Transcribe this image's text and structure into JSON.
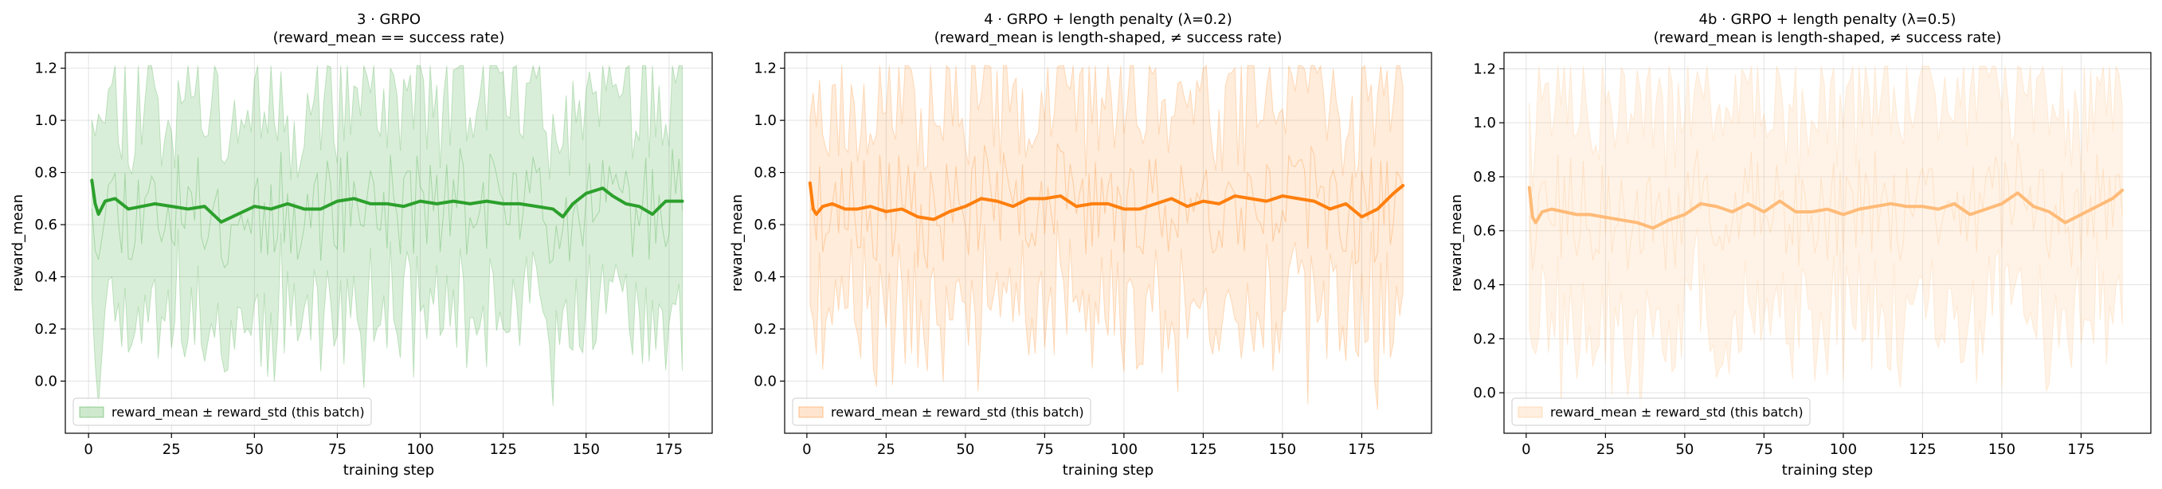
{
  "chart_data": [
    {
      "type": "line",
      "title": "3 · GRPO",
      "subtitle": "(reward_mean == success rate)",
      "xlabel": "training step",
      "ylabel": "reward_mean",
      "xlim": [
        -7,
        188
      ],
      "ylim": [
        -0.2,
        1.26
      ],
      "xticks": [
        0,
        25,
        50,
        75,
        100,
        125,
        150,
        175
      ],
      "yticks": [
        0.0,
        0.2,
        0.4,
        0.6,
        0.8,
        1.0,
        1.2
      ],
      "grid": true,
      "legend": {
        "placement": "bottom-left",
        "label": "reward_mean ± reward_std (this batch)"
      },
      "colors": {
        "line": "#2ca02c",
        "band": "#2ca02c",
        "band_opacity": 0.18,
        "line_opacity": 1.0
      },
      "steps": 179,
      "seed": 11,
      "series": [
        {
          "name": "smoothed reward_mean",
          "x": [
            1,
            2,
            3,
            5,
            8,
            12,
            16,
            20,
            25,
            30,
            35,
            40,
            45,
            50,
            55,
            60,
            65,
            70,
            75,
            80,
            85,
            90,
            95,
            100,
            105,
            110,
            115,
            120,
            125,
            130,
            135,
            140,
            143,
            146,
            150,
            155,
            158,
            162,
            166,
            170,
            174,
            178,
            179
          ],
          "values": [
            0.77,
            0.68,
            0.64,
            0.69,
            0.7,
            0.66,
            0.67,
            0.68,
            0.67,
            0.66,
            0.67,
            0.61,
            0.64,
            0.67,
            0.66,
            0.68,
            0.66,
            0.66,
            0.69,
            0.7,
            0.68,
            0.68,
            0.67,
            0.69,
            0.68,
            0.69,
            0.68,
            0.69,
            0.68,
            0.68,
            0.67,
            0.66,
            0.63,
            0.68,
            0.72,
            0.74,
            0.71,
            0.68,
            0.67,
            0.64,
            0.69,
            0.69,
            0.69
          ]
        }
      ]
    },
    {
      "type": "line",
      "title": "4 · GRPO + length penalty (λ=0.2)",
      "subtitle": "(reward_mean is length-shaped, ≠ success rate)",
      "xlabel": "training step",
      "ylabel": "reward_mean",
      "xlim": [
        -7,
        197
      ],
      "ylim": [
        -0.2,
        1.26
      ],
      "xticks": [
        0,
        25,
        50,
        75,
        100,
        125,
        150,
        175
      ],
      "yticks": [
        0.0,
        0.2,
        0.4,
        0.6,
        0.8,
        1.0,
        1.2
      ],
      "grid": true,
      "legend": {
        "placement": "bottom-left",
        "label": "reward_mean ± reward_std (this batch)"
      },
      "colors": {
        "line": "#ff7f0e",
        "band": "#ff7f0e",
        "band_opacity": 0.15,
        "line_opacity": 1.0
      },
      "steps": 188,
      "seed": 23,
      "series": [
        {
          "name": "smoothed reward_mean",
          "x": [
            1,
            2,
            3,
            5,
            8,
            12,
            16,
            20,
            25,
            30,
            35,
            40,
            45,
            50,
            55,
            60,
            65,
            70,
            75,
            80,
            85,
            90,
            95,
            100,
            105,
            110,
            115,
            120,
            125,
            130,
            135,
            140,
            145,
            150,
            155,
            160,
            165,
            170,
            175,
            180,
            185,
            188
          ],
          "values": [
            0.76,
            0.66,
            0.64,
            0.67,
            0.68,
            0.66,
            0.66,
            0.67,
            0.65,
            0.66,
            0.63,
            0.62,
            0.65,
            0.67,
            0.7,
            0.69,
            0.67,
            0.7,
            0.7,
            0.71,
            0.67,
            0.68,
            0.68,
            0.66,
            0.66,
            0.68,
            0.7,
            0.67,
            0.69,
            0.68,
            0.71,
            0.7,
            0.69,
            0.71,
            0.7,
            0.69,
            0.66,
            0.68,
            0.63,
            0.66,
            0.72,
            0.75
          ]
        }
      ]
    },
    {
      "type": "line",
      "title": "4b · GRPO + length penalty (λ=0.5)",
      "subtitle": "(reward_mean is length-shaped, ≠ success rate)",
      "xlabel": "training step",
      "ylabel": "reward_mean",
      "xlim": [
        -7,
        197
      ],
      "ylim": [
        -0.15,
        1.26
      ],
      "xticks": [
        0,
        25,
        50,
        75,
        100,
        125,
        150,
        175
      ],
      "yticks": [
        0.0,
        0.2,
        0.4,
        0.6,
        0.8,
        1.0,
        1.2
      ],
      "grid": true,
      "legend": {
        "placement": "bottom-left",
        "label": "reward_mean ± reward_std (this batch)"
      },
      "colors": {
        "line": "#ffbb78",
        "band": "#ffbb78",
        "band_opacity": 0.18,
        "line_opacity": 1.0
      },
      "steps": 188,
      "seed": 37,
      "series": [
        {
          "name": "smoothed reward_mean",
          "x": [
            1,
            2,
            3,
            5,
            8,
            12,
            16,
            20,
            25,
            30,
            35,
            40,
            45,
            50,
            55,
            60,
            65,
            70,
            75,
            80,
            85,
            90,
            95,
            100,
            105,
            110,
            115,
            120,
            125,
            130,
            135,
            140,
            145,
            150,
            155,
            160,
            165,
            170,
            175,
            180,
            185,
            188
          ],
          "values": [
            0.76,
            0.65,
            0.63,
            0.67,
            0.68,
            0.67,
            0.66,
            0.66,
            0.65,
            0.64,
            0.63,
            0.61,
            0.64,
            0.66,
            0.7,
            0.69,
            0.67,
            0.7,
            0.67,
            0.71,
            0.67,
            0.67,
            0.68,
            0.66,
            0.68,
            0.69,
            0.7,
            0.69,
            0.69,
            0.68,
            0.7,
            0.66,
            0.68,
            0.7,
            0.74,
            0.69,
            0.67,
            0.63,
            0.66,
            0.69,
            0.72,
            0.75
          ]
        }
      ]
    }
  ]
}
